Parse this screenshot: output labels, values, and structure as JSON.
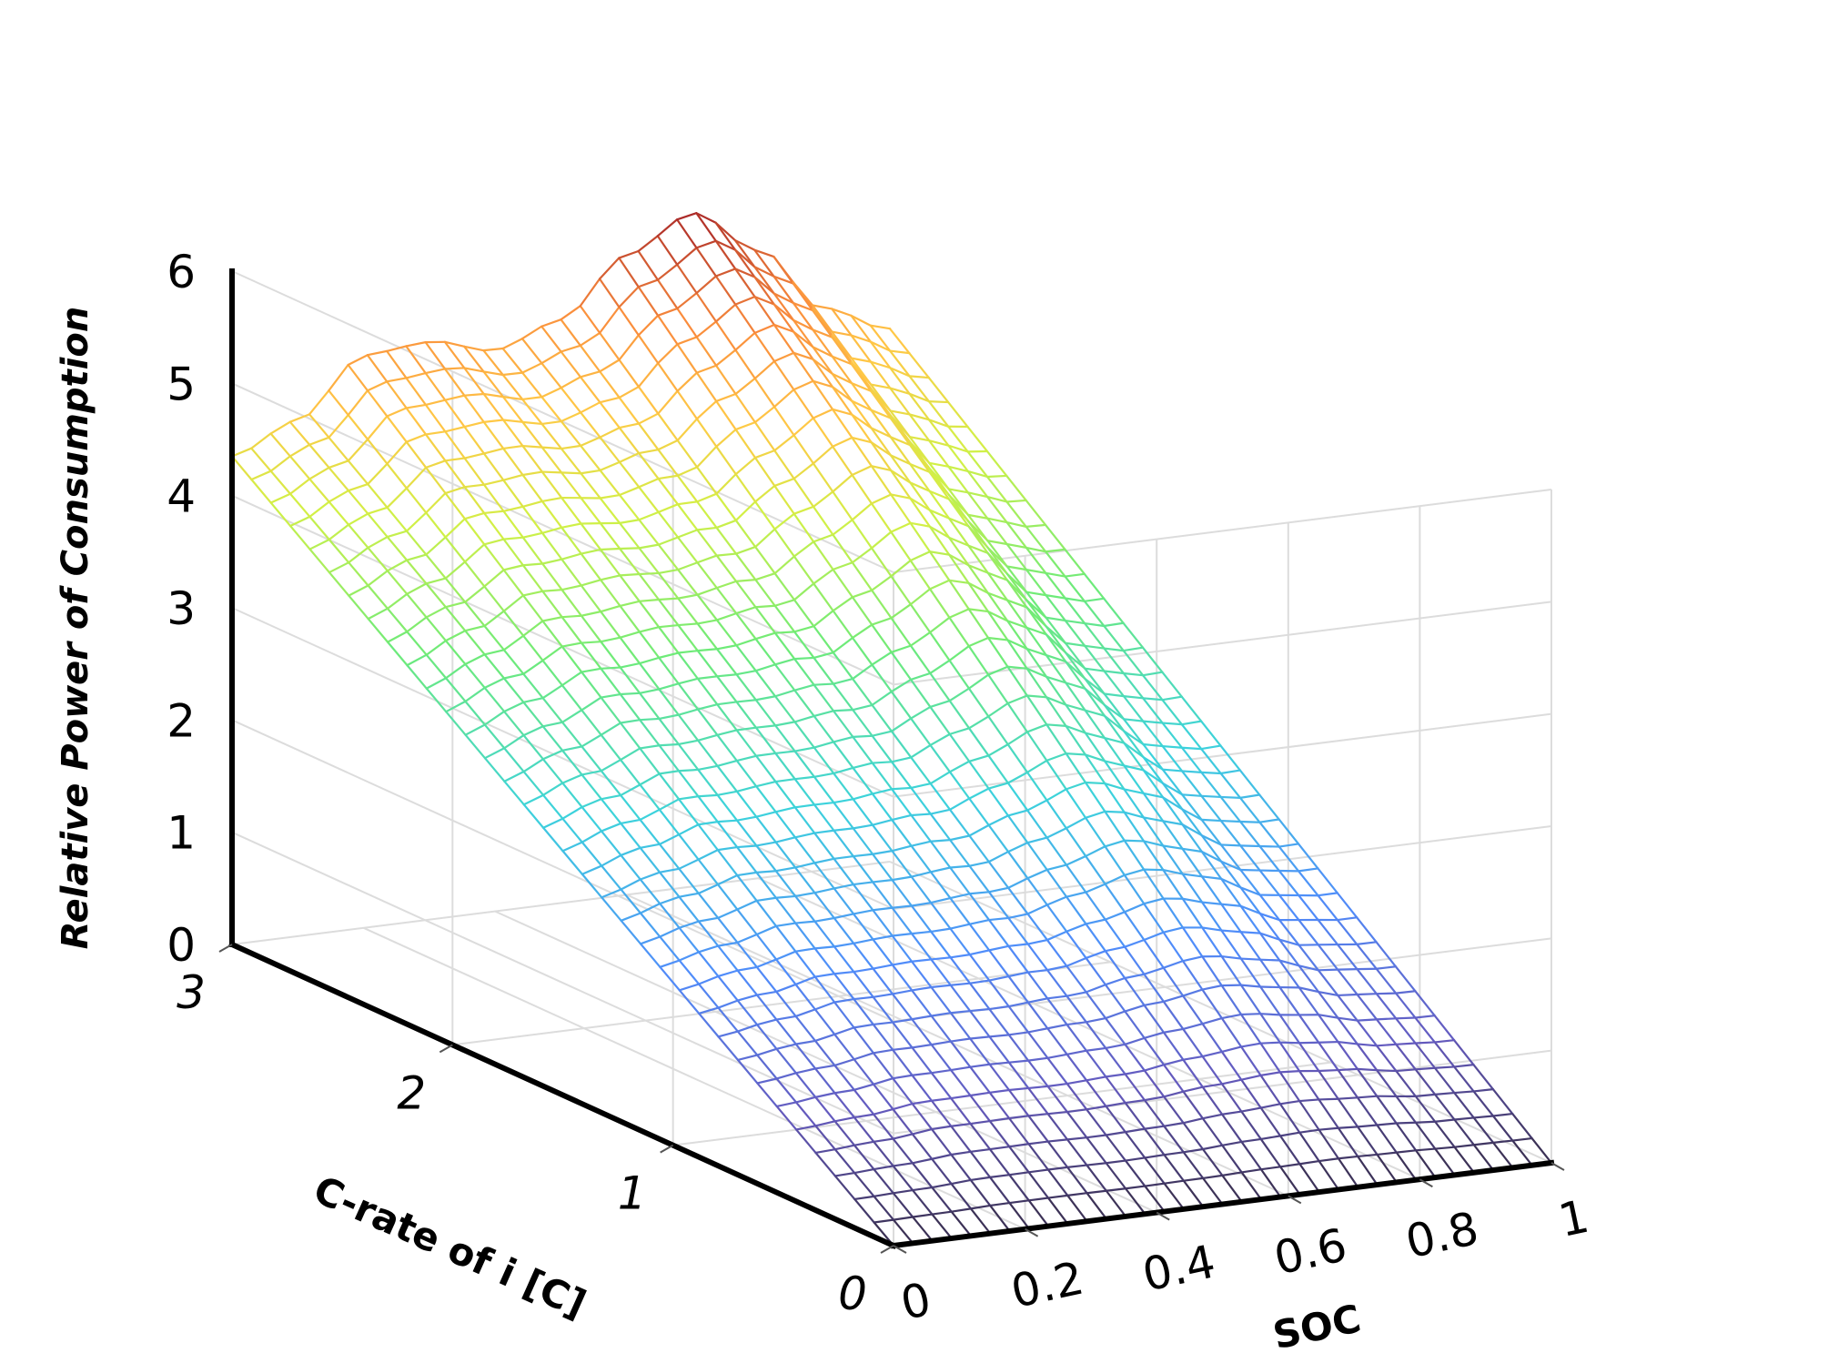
{
  "chart_data": {
    "type": "surface",
    "xlabel": "SOC",
    "ylabel": "C-rate of i [C]",
    "zlabel": "Relative Power of Consumption",
    "xlim": [
      0,
      1
    ],
    "ylim": [
      0,
      3
    ],
    "zlim": [
      0,
      6
    ],
    "x_ticks": [
      "0",
      "0.2",
      "0.4",
      "0.6",
      "0.8",
      "1"
    ],
    "y_ticks": [
      "0",
      "1",
      "2",
      "3"
    ],
    "z_ticks": [
      "0",
      "1",
      "2",
      "3",
      "4",
      "5",
      "6"
    ],
    "grid": true,
    "colormap": "jet",
    "surface_samples": {
      "description": "approximate Z at C-rate = 3 along SOC; Z decreases roughly linearly toward 0 at C-rate = 0",
      "soc": [
        0,
        0.1,
        0.2,
        0.3,
        0.4,
        0.5,
        0.6,
        0.7,
        0.8,
        0.9,
        1.0
      ],
      "z_at_max_crate": [
        4.35,
        4.6,
        5.1,
        5.15,
        5.0,
        5.2,
        5.7,
        6.0,
        5.6,
        5.0,
        4.75
      ]
    }
  }
}
